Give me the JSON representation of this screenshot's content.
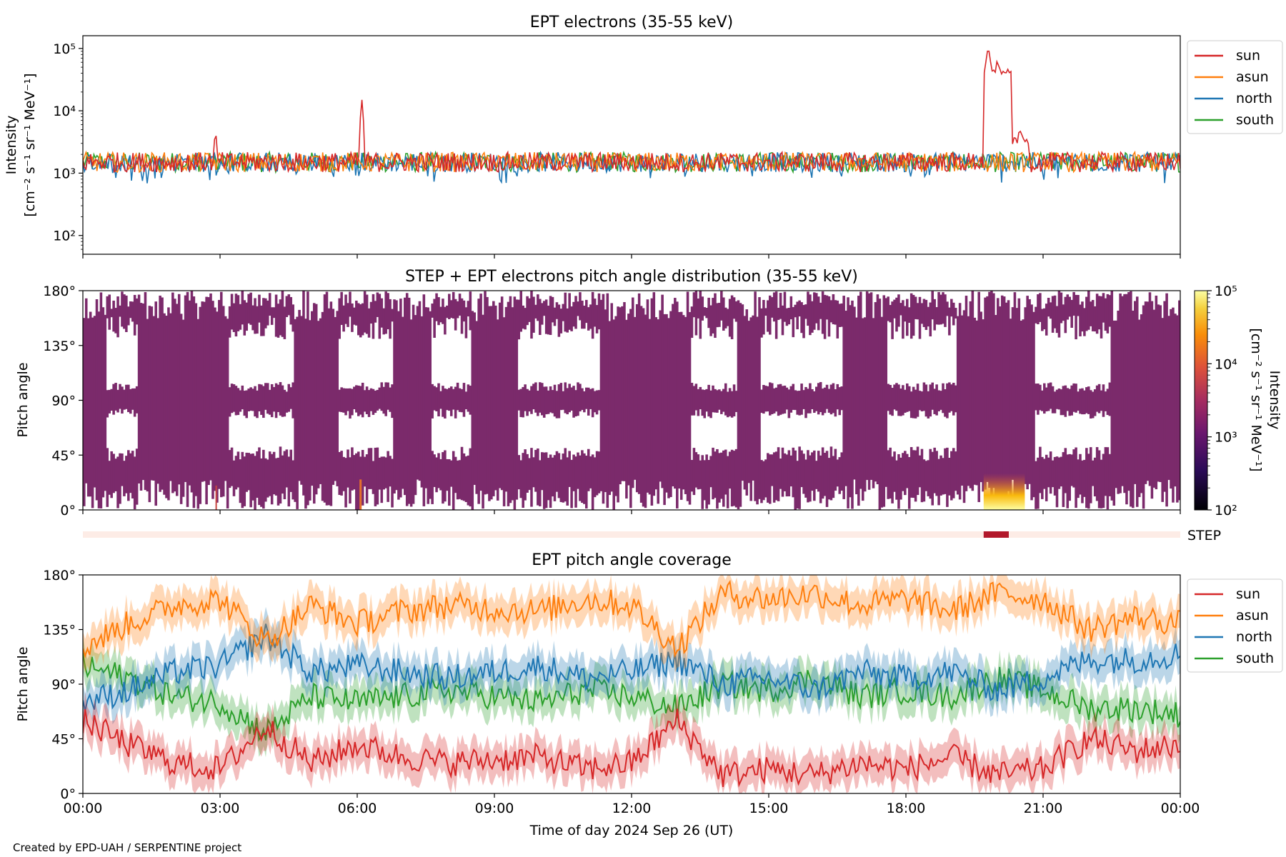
{
  "footer": "Created by EPD-UAH / SERPENTINE project",
  "xlabel": "Time of day 2024 Sep 26 (UT)",
  "x_ticks": [
    "00:00",
    "03:00",
    "06:00",
    "09:00",
    "12:00",
    "15:00",
    "18:00",
    "21:00",
    "00:00"
  ],
  "colors": {
    "sun": "#d62728",
    "asun": "#ff7f0e",
    "north": "#1f77b4",
    "south": "#2ca02c",
    "pad": "#7b2a6b",
    "step_bar": "#b2182b",
    "step_bg": "#fdece6"
  },
  "chart_data": [
    {
      "type": "line",
      "title": "EPT electrons (35-55 keV)",
      "ylabel": [
        "Intensity",
        "[cm⁻² s⁻¹ sr⁻¹ MeV⁻¹]"
      ],
      "yscale": "log",
      "ylim": [
        50,
        160000
      ],
      "y_ticks": [
        {
          "v": 100,
          "label": "10²"
        },
        {
          "v": 1000,
          "label": "10³"
        },
        {
          "v": 10000,
          "label": "10⁴"
        },
        {
          "v": 100000,
          "label": "10⁵"
        }
      ],
      "xlim_hours": [
        0,
        24
      ],
      "legend": "outside-right",
      "baseline": 1500,
      "series": [
        {
          "name": "sun",
          "key": "sun",
          "peaks": [
            [
              2.9,
              5500
            ],
            [
              6.1,
              16000
            ],
            [
              19.8,
              110000
            ],
            [
              20.0,
              70000
            ],
            [
              20.2,
              30000
            ],
            [
              20.5,
              5000
            ]
          ]
        },
        {
          "name": "asun",
          "key": "asun",
          "peaks": []
        },
        {
          "name": "north",
          "key": "north",
          "peaks": []
        },
        {
          "name": "south",
          "key": "south",
          "peaks": []
        }
      ]
    },
    {
      "type": "heatmap",
      "title": "STEP + EPT electrons pitch angle distribution (35-55 keV)",
      "ylabel": "Pitch angle",
      "ylim": [
        0,
        180
      ],
      "y_ticks": [
        "0°",
        "45°",
        "90°",
        "135°",
        "180°"
      ],
      "colorbar": {
        "label": [
          "Intensity",
          "[cm⁻² s⁻¹ sr⁻¹ MeV⁻¹]"
        ],
        "scale": "log",
        "range": [
          100,
          100000
        ],
        "ticks": [
          "10²",
          "10³",
          "10⁴",
          "10⁵"
        ]
      },
      "step_label": "STEP",
      "step_active_hours": [
        19.7,
        20.25
      ],
      "high_intensity_hours": [
        19.7,
        20.6
      ],
      "gap_hours": [
        [
          0.5,
          1.2
        ],
        [
          3.2,
          4.6
        ],
        [
          5.6,
          6.8
        ],
        [
          7.6,
          8.5
        ],
        [
          9.5,
          11.3
        ],
        [
          13.3,
          14.3
        ],
        [
          14.8,
          16.6
        ],
        [
          17.6,
          19.1
        ],
        [
          20.8,
          22.5
        ]
      ]
    },
    {
      "type": "line",
      "title": "EPT pitch angle coverage",
      "ylabel": "Pitch angle",
      "ylim": [
        0,
        180
      ],
      "y_ticks": [
        "0°",
        "45°",
        "90°",
        "135°",
        "180°"
      ],
      "legend": "outside-right",
      "series": [
        {
          "name": "sun",
          "key": "sun",
          "center": [
            60,
            40,
            25,
            20,
            55,
            25,
            40,
            30,
            25,
            28,
            30,
            20,
            25,
            60,
            15,
            20,
            15,
            25,
            20,
            30,
            15,
            20,
            45,
            35,
            40
          ]
        },
        {
          "name": "asun",
          "key": "asun",
          "center": [
            120,
            140,
            155,
            160,
            125,
            155,
            140,
            150,
            155,
            152,
            150,
            160,
            155,
            120,
            165,
            160,
            165,
            155,
            160,
            150,
            165,
            160,
            135,
            145,
            140
          ]
        },
        {
          "name": "north",
          "key": "north",
          "center": [
            75,
            85,
            100,
            105,
            130,
            100,
            105,
            100,
            95,
            100,
            105,
            95,
            100,
            110,
            90,
            95,
            85,
            100,
            95,
            100,
            85,
            95,
            110,
            110,
            115
          ]
        },
        {
          "name": "south",
          "key": "south",
          "center": [
            105,
            95,
            80,
            75,
            50,
            80,
            75,
            80,
            85,
            80,
            75,
            85,
            80,
            70,
            90,
            85,
            95,
            80,
            85,
            80,
            95,
            85,
            70,
            70,
            65
          ]
        }
      ]
    }
  ]
}
